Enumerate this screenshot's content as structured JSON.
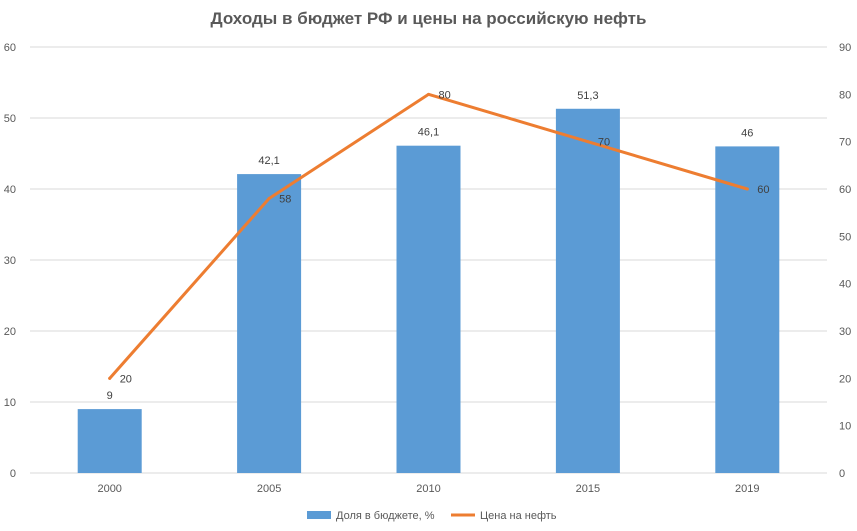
{
  "chart_data": {
    "type": "bar",
    "title": "Доходы в бюджет РФ и цены на российскую нефть",
    "categories": [
      "2000",
      "2005",
      "2010",
      "2015",
      "2019"
    ],
    "series": [
      {
        "name": "Доля в бюджете, %",
        "type": "bar",
        "axis": "left",
        "color": "#5B9BD5",
        "values": [
          9,
          42.1,
          46.1,
          51.3,
          46
        ],
        "labels": [
          "9",
          "42,1",
          "46,1",
          "51,3",
          "46"
        ]
      },
      {
        "name": "Цена на нефть",
        "type": "line",
        "axis": "right",
        "color": "#ED7D31",
        "values": [
          20,
          58,
          80,
          70,
          60
        ],
        "labels": [
          "20",
          "58",
          "80",
          "70",
          "60"
        ]
      }
    ],
    "y_left": {
      "min": 0,
      "max": 60,
      "ticks": [
        "0",
        "10",
        "20",
        "30",
        "40",
        "50",
        "60"
      ]
    },
    "y_right": {
      "min": 0,
      "max": 90,
      "ticks": [
        "0",
        "10",
        "20",
        "30",
        "40",
        "50",
        "60",
        "70",
        "80",
        "90"
      ]
    },
    "grid": true,
    "legend": "bottom"
  }
}
